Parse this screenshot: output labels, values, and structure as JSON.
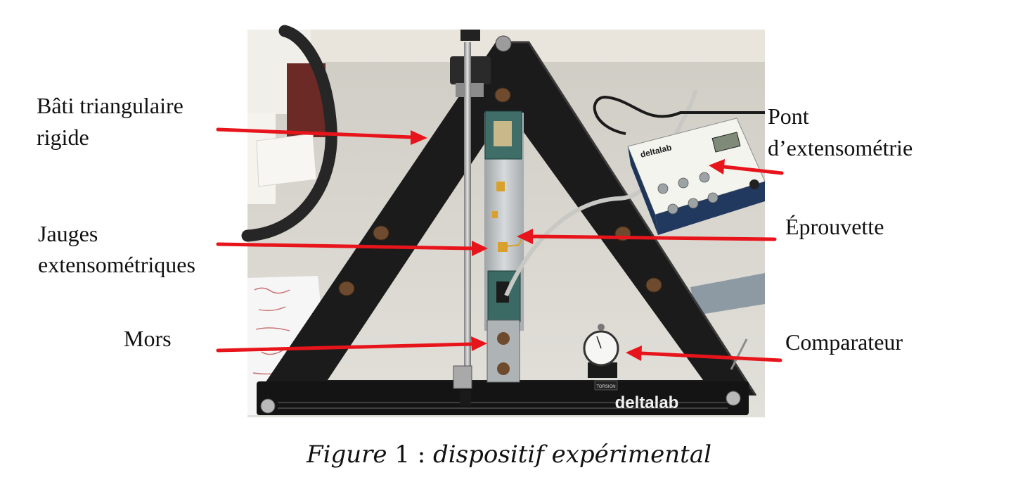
{
  "labels": {
    "bati_line1": "Bâti triangulaire",
    "bati_line2": "rigide",
    "jauges_line1": "Jauges",
    "jauges_line2": "extensométriques",
    "mors": "Mors",
    "pont_line1": "Pont",
    "pont_line2": "d’extensométrie",
    "eprouvette": "Éprouvette",
    "comparateur": "Comparateur"
  },
  "photo": {
    "brand_frame": "deltalab",
    "brand_bridge": "deltalab",
    "frame_small_tag": "TORSION"
  },
  "caption": {
    "figure_word": "Figure",
    "number": "1",
    "separator": " : ",
    "text": "dispositif expérimental"
  },
  "colors": {
    "arrow": "#e8141b",
    "frame": "#1c1c1c",
    "table": "#dcdad4",
    "wall": "#e9e5dc",
    "bridge_panel": "#f4f4ef",
    "bridge_side": "#1f3558"
  }
}
